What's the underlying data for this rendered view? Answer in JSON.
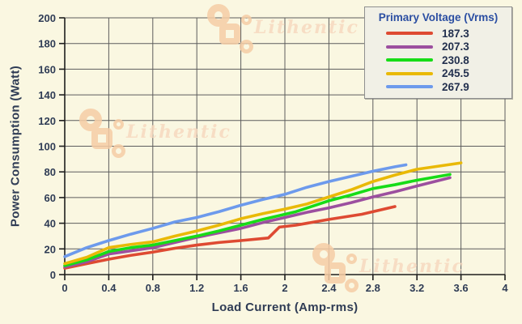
{
  "watermark": {
    "text": "Lithentic"
  },
  "colors": {
    "background": "#FAF7E1",
    "grid": "#5D5D5D",
    "axis": "#1E1E1E",
    "tick_label": "#2F3C55",
    "legend_bg": "#F1F0E6",
    "legend_border": "#8F8F8F",
    "legend_title_color": "#2B4EA2",
    "watermark_color": "#F6CDA6"
  },
  "chart_data": {
    "type": "line",
    "title": "",
    "xlabel": "Load Current (Amp-rms)",
    "ylabel": "Power Consumption (Watt)",
    "xlim": [
      0,
      4
    ],
    "ylim": [
      0,
      200
    ],
    "grid": true,
    "x_ticks": [
      0,
      0.4,
      0.8,
      1.2,
      1.6,
      2,
      2.4,
      2.8,
      3.2,
      3.6,
      4
    ],
    "x_tick_labels": [
      "0",
      "0.4",
      "0.8",
      "1.2",
      "1.6",
      "2",
      "2.4",
      "2.8",
      "3.2",
      "3.6",
      "4"
    ],
    "y_ticks": [
      0,
      20,
      40,
      60,
      80,
      100,
      120,
      140,
      160,
      180,
      200
    ],
    "y_tick_labels": [
      "0",
      "20",
      "40",
      "60",
      "80",
      "100",
      "120",
      "140",
      "160",
      "180",
      "200"
    ],
    "legend": {
      "title": "Primary Voltage (Vrms)",
      "position": "top-right"
    },
    "series": [
      {
        "name": "187.3",
        "color": "#DE4A32",
        "points": [
          [
            0,
            5
          ],
          [
            0.2,
            8.5
          ],
          [
            0.4,
            12
          ],
          [
            0.6,
            15
          ],
          [
            0.8,
            17.5
          ],
          [
            1.0,
            20.5
          ],
          [
            1.2,
            23
          ],
          [
            1.4,
            25
          ],
          [
            1.6,
            26.5
          ],
          [
            1.85,
            28.5
          ],
          [
            1.95,
            37
          ],
          [
            2.1,
            38.5
          ],
          [
            2.4,
            43
          ],
          [
            2.7,
            47
          ],
          [
            3.0,
            53
          ]
        ]
      },
      {
        "name": "207.3",
        "color": "#9C4F9F",
        "points": [
          [
            0,
            6
          ],
          [
            0.2,
            10
          ],
          [
            0.4,
            16
          ],
          [
            0.6,
            18.5
          ],
          [
            0.8,
            21
          ],
          [
            1.0,
            25
          ],
          [
            1.2,
            29
          ],
          [
            1.4,
            32.5
          ],
          [
            1.6,
            36
          ],
          [
            1.8,
            40.5
          ],
          [
            2.0,
            44.5
          ],
          [
            2.2,
            48.5
          ],
          [
            2.4,
            52
          ],
          [
            2.6,
            56
          ],
          [
            2.8,
            60.5
          ],
          [
            3.0,
            64.5
          ],
          [
            3.2,
            69
          ],
          [
            3.5,
            75.5
          ]
        ]
      },
      {
        "name": "230.8",
        "color": "#17DC17",
        "points": [
          [
            0,
            7
          ],
          [
            0.2,
            11.5
          ],
          [
            0.4,
            18
          ],
          [
            0.6,
            21
          ],
          [
            0.8,
            23
          ],
          [
            1.0,
            26.5
          ],
          [
            1.2,
            30
          ],
          [
            1.4,
            34
          ],
          [
            1.6,
            38.5
          ],
          [
            1.8,
            43
          ],
          [
            1.95,
            46
          ],
          [
            2.1,
            49
          ],
          [
            2.4,
            57.5
          ],
          [
            2.6,
            62
          ],
          [
            2.8,
            67
          ],
          [
            3.0,
            70
          ],
          [
            3.2,
            73.5
          ],
          [
            3.5,
            78
          ]
        ]
      },
      {
        "name": "245.5",
        "color": "#E9B906",
        "points": [
          [
            0,
            8.5
          ],
          [
            0.2,
            13.5
          ],
          [
            0.4,
            21
          ],
          [
            0.6,
            23.5
          ],
          [
            0.8,
            25.5
          ],
          [
            1.0,
            30
          ],
          [
            1.2,
            34
          ],
          [
            1.4,
            38.5
          ],
          [
            1.6,
            43.5
          ],
          [
            1.8,
            47.5
          ],
          [
            2.0,
            51
          ],
          [
            2.2,
            55
          ],
          [
            2.4,
            60.5
          ],
          [
            2.6,
            66
          ],
          [
            2.8,
            72.5
          ],
          [
            3.0,
            77.5
          ],
          [
            3.2,
            82
          ],
          [
            3.6,
            87
          ]
        ]
      },
      {
        "name": "267.9",
        "color": "#6D9AEC",
        "points": [
          [
            0,
            14
          ],
          [
            0.2,
            21
          ],
          [
            0.4,
            26.5
          ],
          [
            0.6,
            31.5
          ],
          [
            0.8,
            36
          ],
          [
            1.0,
            41
          ],
          [
            1.2,
            44.5
          ],
          [
            1.4,
            49
          ],
          [
            1.6,
            54
          ],
          [
            1.8,
            58.5
          ],
          [
            2.0,
            62.5
          ],
          [
            2.2,
            68
          ],
          [
            2.4,
            72.5
          ],
          [
            2.6,
            76.5
          ],
          [
            2.8,
            80.5
          ],
          [
            3.0,
            84
          ],
          [
            3.1,
            85.5
          ]
        ]
      }
    ]
  }
}
